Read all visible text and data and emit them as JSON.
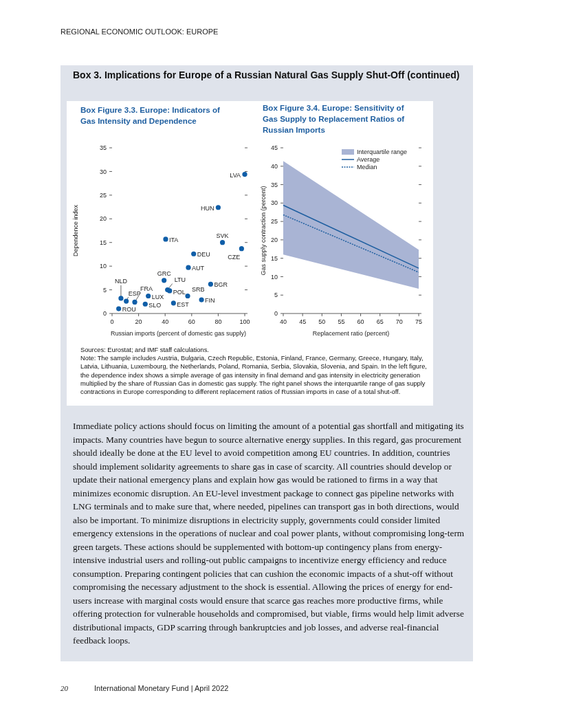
{
  "chart_data": [
    {
      "type": "scatter",
      "title": "Box Figure 3.3. Europe: Indicators of Gas Intensity and Dependence",
      "xlabel": "Russian imports (percent of domestic gas supply)",
      "ylabel": "Dependence index",
      "xlim": [
        0,
        100
      ],
      "xticks": [
        0,
        20,
        40,
        60,
        80,
        100
      ],
      "ylim": [
        0,
        35
      ],
      "yticks": [
        0,
        5,
        10,
        15,
        20,
        25,
        30,
        35
      ],
      "marker": "circle",
      "annotations": [
        "REGIONAL ECONOMIC OUTLOOK: EUROPE",
        "Box 3. Implications for Europe of a Russian Natural Gas Supply Shut-Off (continued)",
        "20",
        "International Monetary Fund | April 2022"
      ],
      "series": [
        {
          "name": "LVA",
          "color": "#0f5ea8",
          "x": [
            100
          ],
          "values": [
            29.4
          ]
        },
        {
          "name": "HUN",
          "color": "#0f5ea8",
          "x": [
            80
          ],
          "values": [
            22.4
          ]
        },
        {
          "name": "ITA",
          "color": "#0f5ea8",
          "x": [
            40.4
          ],
          "values": [
            15.7
          ]
        },
        {
          "name": "SVK",
          "color": "#0f5ea8",
          "x": [
            83.2
          ],
          "values": [
            15.0
          ]
        },
        {
          "name": "CZE",
          "color": "#0f5ea8",
          "x": [
            97.6
          ],
          "values": [
            13.7
          ]
        },
        {
          "name": "DEU",
          "color": "#0f5ea8",
          "x": [
            61.5
          ],
          "values": [
            12.6
          ]
        },
        {
          "name": "AUT",
          "color": "#0f5ea8",
          "x": [
            57.5
          ],
          "values": [
            9.7
          ]
        },
        {
          "name": "GRC",
          "color": "#0f5ea8",
          "x": [
            39.2
          ],
          "values": [
            7.0
          ]
        },
        {
          "name": "BGR",
          "color": "#0f5ea8",
          "x": [
            74.3
          ],
          "values": [
            6.2
          ]
        },
        {
          "name": "LTU",
          "color": "#0f5ea8",
          "x": [
            41.8
          ],
          "values": [
            5.0
          ]
        },
        {
          "name": "POL",
          "color": "#0f5ea8",
          "x": [
            43.4
          ],
          "values": [
            4.8
          ]
        },
        {
          "name": "SRB",
          "color": "#0f5ea8",
          "x": [
            57.0
          ],
          "values": [
            3.7
          ]
        },
        {
          "name": "LUX",
          "color": "#0f5ea8",
          "x": [
            27.3
          ],
          "values": [
            3.7
          ]
        },
        {
          "name": "NLD",
          "color": "#0f5ea8",
          "x": [
            6.7
          ],
          "values": [
            3.2
          ]
        },
        {
          "name": "ESP",
          "color": "#0f5ea8",
          "x": [
            10.7
          ],
          "values": [
            2.6
          ]
        },
        {
          "name": "FRA",
          "color": "#0f5ea8",
          "x": [
            17.1
          ],
          "values": [
            2.4
          ]
        },
        {
          "name": "FIN",
          "color": "#0f5ea8",
          "x": [
            67.4
          ],
          "values": [
            2.9
          ]
        },
        {
          "name": "SLO",
          "color": "#0f5ea8",
          "x": [
            25.0
          ],
          "values": [
            2.0
          ]
        },
        {
          "name": "EST",
          "color": "#0f5ea8",
          "x": [
            46.3
          ],
          "values": [
            2.2
          ]
        },
        {
          "name": "ROU",
          "color": "#0f5ea8",
          "x": [
            5.0
          ],
          "values": [
            1.0
          ]
        }
      ]
    },
    {
      "type": "line",
      "title": "Box Figure 3.4. Europe: Sensitivity of Gas Supply to Replacement Ratios of Russian Imports",
      "xlabel": "Replacement ratio (percent)",
      "ylabel": "Gas supply contraction (percent)",
      "xlim": [
        40,
        75
      ],
      "xticks": [
        40,
        45,
        50,
        55,
        60,
        65,
        70,
        75
      ],
      "ylim": [
        0,
        45
      ],
      "yticks": [
        0,
        5,
        10,
        15,
        20,
        25,
        30,
        35,
        40,
        45
      ],
      "legend": "top right",
      "annotations": [
        "Sources: Eurostat; and IMF staff calculations.",
        "Note: The sample includes Austria, Bulgaria, Czech Republic, Estonia, Finland, France, Germany, Greece, Hungary, Italy, Latvia, Lithuania, Luxembourg, the Netherlands, Poland, Romania, Serbia, Slovakia, Slovenia, and Spain. In the left figure, the dependence index shows a simple average of gas intensity in final demand and gas intensity in electricity generation multiplied by the share of Russian Gas in domestic gas supply. The right panel shows the interquartile range of gas supply contractions in Europe corresponding to different replacement ratios of Russian imports in case of a total shut-off.",
        "Immediate policy actions should focus on limiting the amount of a potential gas shortfall and mitigating its impacts. Many countries have begun to source alternative energy supplies. In this regard, gas procurement should ideally be done at the EU level to avoid competition among EU countries. In addition, countries should implement solidarity agreements to share gas in case of scarcity. All countries should develop or update their national emergency plans and explain how gas would be rationed to firms in a way that minimizes economic disruption. An EU-level investment package to connect gas pipeline networks with LNG terminals and to make sure that, where needed, pipelines can transport gas in both directions, would also be important. To minimize disruptions in electricity supply, governments could consider limited emergency extensions in the operations of nuclear and coal power plants, without compromising long-term green targets. These actions should be supplemented with bottom-up contingency plans from energy-intensive industrial users and rolling-out public campaigns to incentivize energy efficiency and reduce consumption. Preparing contingent policies that can cushion the economic impacts of a shut-off without compromising the necessary adjustment to the shock is essential. Allowing the prices of energy for end-users increase with marginal costs would ensure that scarce gas reaches more productive firms, while offering protection for vulnerable households and compromised, but viable, firms would help limit adverse distributional impacts, GDP scarring through bankruptcies and job losses, and adverse real-financial feedback loops."
      ],
      "series": [
        {
          "name": "Interquartile range",
          "type": "area",
          "color": "#a9b4d4",
          "x": [
            40,
            75
          ],
          "values": [
            null,
            null
          ],
          "lower": [
            16.0,
            6.7
          ],
          "upper": [
            41.4,
            17.3
          ]
        },
        {
          "name": "Average",
          "color": "#1f5fa0",
          "x": [
            40,
            75
          ],
          "values": [
            29.4,
            12.3
          ],
          "line_style": "solid"
        },
        {
          "name": "Median",
          "color": "#1f5fa0",
          "x": [
            40,
            75
          ],
          "values": [
            26.8,
            11.2
          ],
          "line_style": "dotted"
        }
      ]
    }
  ]
}
